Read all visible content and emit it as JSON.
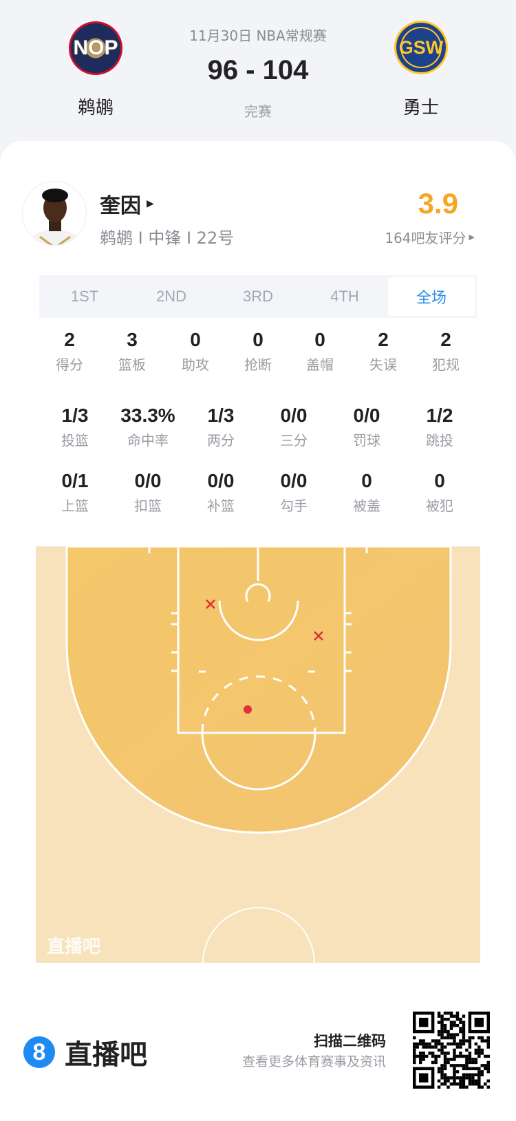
{
  "match": {
    "date_league": "11月30日 NBA常规赛",
    "score": "96 - 104",
    "status": "完赛",
    "home": {
      "abbr": "NOP",
      "name": "鹈鹕"
    },
    "away": {
      "abbr": "GSW",
      "name": "勇士"
    }
  },
  "player": {
    "name": "奎因",
    "info": "鹈鹕 I 中锋 I 22号",
    "rating": "3.9",
    "rating_count": "164吧友评分",
    "rating_color": "#f5a623"
  },
  "tabs": [
    {
      "label": "1ST"
    },
    {
      "label": "2ND"
    },
    {
      "label": "3RD"
    },
    {
      "label": "4TH"
    },
    {
      "label": "全场",
      "active": true
    }
  ],
  "stats_row1": [
    {
      "v": "2",
      "l": "得分"
    },
    {
      "v": "3",
      "l": "篮板"
    },
    {
      "v": "0",
      "l": "助攻"
    },
    {
      "v": "0",
      "l": "抢断"
    },
    {
      "v": "0",
      "l": "盖帽"
    },
    {
      "v": "2",
      "l": "失误"
    },
    {
      "v": "2",
      "l": "犯规"
    }
  ],
  "stats_row2": [
    {
      "v": "1/3",
      "l": "投篮"
    },
    {
      "v": "33.3%",
      "l": "命中率"
    },
    {
      "v": "1/3",
      "l": "两分"
    },
    {
      "v": "0/0",
      "l": "三分"
    },
    {
      "v": "0/0",
      "l": "罚球"
    },
    {
      "v": "1/2",
      "l": "跳投"
    }
  ],
  "stats_row3": [
    {
      "v": "0/1",
      "l": "上篮"
    },
    {
      "v": "0/0",
      "l": "扣篮"
    },
    {
      "v": "0/0",
      "l": "补篮"
    },
    {
      "v": "0/0",
      "l": "勾手"
    },
    {
      "v": "0",
      "l": "被盖"
    },
    {
      "v": "0",
      "l": "被犯"
    }
  ],
  "shot_chart": {
    "shots": [
      {
        "result": "miss"
      },
      {
        "result": "miss"
      },
      {
        "result": "made"
      }
    ],
    "watermark": "直播吧",
    "miss_color": "#e0303a",
    "made_color": "#e0303a"
  },
  "footer": {
    "brand": "直播吧",
    "brand_icon": "8",
    "qr_title": "扫描二维码",
    "qr_subtitle": "查看更多体育赛事及资讯",
    "brand_color": "#1e8bf5"
  }
}
